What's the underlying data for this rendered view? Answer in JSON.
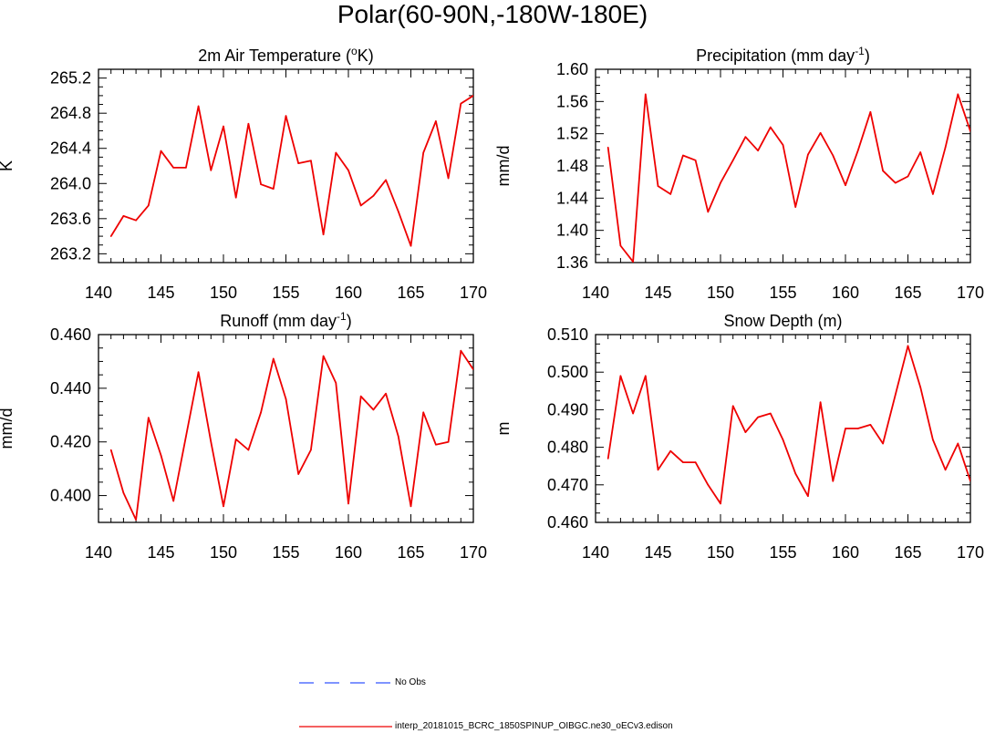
{
  "figure": {
    "title": "Polar(60-90N,-180W-180E)"
  },
  "chart_data": [
    {
      "type": "line",
      "title": "2m Air Temperature (oK)",
      "title_parts": {
        "pre": "2m Air Temperature (",
        "sup": "o",
        "post": "K)"
      },
      "xlabel": "",
      "ylabel": "K",
      "xlim": [
        140,
        170
      ],
      "ylim": [
        263.1,
        265.3
      ],
      "xticks": [
        140,
        145,
        150,
        155,
        160,
        165,
        170
      ],
      "yticks": [
        263.2,
        263.6,
        264.0,
        264.4,
        264.8,
        265.2
      ],
      "ytick_labels": [
        "263.2",
        "263.6",
        "264.0",
        "264.4",
        "264.8",
        "265.2"
      ],
      "x": [
        141,
        142,
        143,
        144,
        145,
        146,
        147,
        148,
        149,
        150,
        151,
        152,
        153,
        154,
        155,
        156,
        157,
        158,
        159,
        160,
        161,
        162,
        163,
        164,
        165,
        166,
        167,
        168,
        169,
        170
      ],
      "series": [
        {
          "name": "interp_20181015_BCRC_1850SPINUP_OIBGC.ne30_oECv3.edison",
          "values": [
            263.4,
            263.63,
            263.58,
            263.75,
            264.37,
            264.18,
            264.18,
            264.88,
            264.15,
            264.65,
            263.84,
            264.68,
            263.99,
            263.94,
            264.77,
            264.23,
            264.26,
            263.42,
            264.35,
            264.15,
            263.75,
            263.86,
            264.04,
            263.68,
            263.29,
            264.35,
            264.71,
            264.06,
            264.91,
            265.0
          ]
        }
      ]
    },
    {
      "type": "line",
      "title": "Precipitation (mm day-1)",
      "title_parts": {
        "pre": "Precipitation (mm day",
        "sup": "-1",
        "post": ")"
      },
      "xlabel": "",
      "ylabel": "mm/d",
      "xlim": [
        140,
        170
      ],
      "ylim": [
        1.36,
        1.6
      ],
      "xticks": [
        140,
        145,
        150,
        155,
        160,
        165,
        170
      ],
      "yticks": [
        1.36,
        1.4,
        1.44,
        1.48,
        1.52,
        1.56,
        1.6
      ],
      "ytick_labels": [
        "1.36",
        "1.40",
        "1.44",
        "1.48",
        "1.52",
        "1.56",
        "1.60"
      ],
      "x": [
        141,
        142,
        143,
        144,
        145,
        146,
        147,
        148,
        149,
        150,
        151,
        152,
        153,
        154,
        155,
        156,
        157,
        158,
        159,
        160,
        161,
        162,
        163,
        164,
        165,
        166,
        167,
        168,
        169,
        170
      ],
      "series": [
        {
          "name": "interp_20181015_BCRC_1850SPINUP_OIBGC.ne30_oECv3.edison",
          "values": [
            1.503,
            1.381,
            1.361,
            1.569,
            1.455,
            1.445,
            1.493,
            1.487,
            1.423,
            1.459,
            1.487,
            1.516,
            1.499,
            1.528,
            1.506,
            1.429,
            1.494,
            1.521,
            1.493,
            1.456,
            1.499,
            1.547,
            1.474,
            1.459,
            1.467,
            1.497,
            1.445,
            1.503,
            1.569,
            1.523
          ]
        }
      ]
    },
    {
      "type": "line",
      "title": "Runoff (mm day-1)",
      "title_parts": {
        "pre": "Runoff (mm day",
        "sup": "-1",
        "post": ")"
      },
      "xlabel": "",
      "ylabel": "mm/d",
      "xlim": [
        140,
        170
      ],
      "ylim": [
        0.39,
        0.46
      ],
      "xticks": [
        140,
        145,
        150,
        155,
        160,
        165,
        170
      ],
      "yticks": [
        0.4,
        0.42,
        0.44,
        0.46
      ],
      "ytick_labels": [
        "0.400",
        "0.420",
        "0.440",
        "0.460"
      ],
      "x": [
        141,
        142,
        143,
        144,
        145,
        146,
        147,
        148,
        149,
        150,
        151,
        152,
        153,
        154,
        155,
        156,
        157,
        158,
        159,
        160,
        161,
        162,
        163,
        164,
        165,
        166,
        167,
        168,
        169,
        170
      ],
      "series": [
        {
          "name": "interp_20181015_BCRC_1850SPINUP_OIBGC.ne30_oECv3.edison",
          "values": [
            0.417,
            0.401,
            0.391,
            0.429,
            0.415,
            0.398,
            0.422,
            0.446,
            0.42,
            0.396,
            0.421,
            0.417,
            0.431,
            0.451,
            0.436,
            0.408,
            0.417,
            0.452,
            0.442,
            0.397,
            0.437,
            0.432,
            0.438,
            0.422,
            0.396,
            0.431,
            0.419,
            0.42,
            0.454,
            0.447
          ]
        }
      ]
    },
    {
      "type": "line",
      "title": "Snow Depth (m)",
      "title_parts": {
        "pre": "Snow Depth (m)",
        "sup": "",
        "post": ""
      },
      "xlabel": "",
      "ylabel": "m",
      "xlim": [
        140,
        170
      ],
      "ylim": [
        0.46,
        0.51
      ],
      "xticks": [
        140,
        145,
        150,
        155,
        160,
        165,
        170
      ],
      "yticks": [
        0.46,
        0.47,
        0.48,
        0.49,
        0.5,
        0.51
      ],
      "ytick_labels": [
        "0.460",
        "0.470",
        "0.480",
        "0.490",
        "0.500",
        "0.510"
      ],
      "x": [
        141,
        142,
        143,
        144,
        145,
        146,
        147,
        148,
        149,
        150,
        151,
        152,
        153,
        154,
        155,
        156,
        157,
        158,
        159,
        160,
        161,
        162,
        163,
        164,
        165,
        166,
        167,
        168,
        169,
        170
      ],
      "series": [
        {
          "name": "interp_20181015_BCRC_1850SPINUP_OIBGC.ne30_oECv3.edison",
          "values": [
            0.477,
            0.499,
            0.489,
            0.499,
            0.474,
            0.479,
            0.476,
            0.476,
            0.47,
            0.465,
            0.491,
            0.484,
            0.488,
            0.489,
            0.482,
            0.473,
            0.467,
            0.492,
            0.471,
            0.485,
            0.485,
            0.486,
            0.481,
            0.494,
            0.507,
            0.496,
            0.482,
            0.474,
            0.481,
            0.471
          ]
        }
      ]
    }
  ],
  "legend": [
    {
      "label": "No Obs",
      "color": "#3355ff",
      "style": "dashed"
    },
    {
      "label": "interp_20181015_BCRC_1850SPINUP_OIBGC.ne30_oECv3.edison",
      "color": "#ee0000",
      "style": "solid"
    }
  ],
  "colors": {
    "series": "#ee0000",
    "axis": "#000000"
  }
}
